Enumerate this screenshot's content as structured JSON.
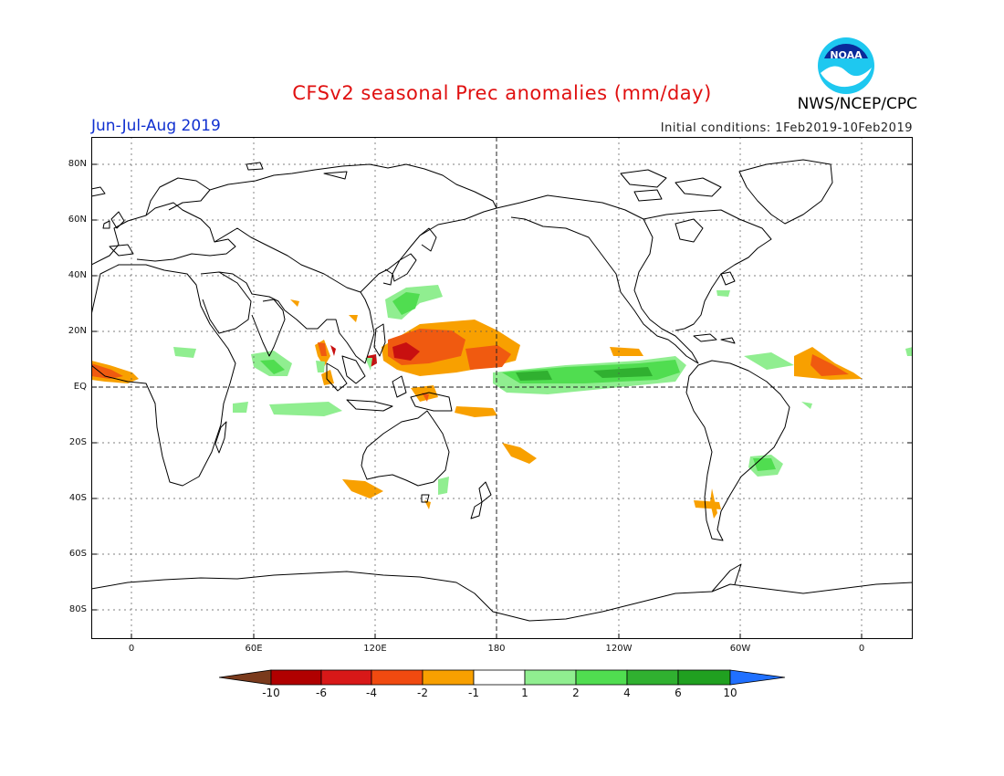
{
  "header": {
    "title": "CFSv2 seasonal Prec anomalies (mm/day)",
    "season": "Jun-Jul-Aug 2019",
    "initial_conditions": "Initial conditions: 1Feb2019-10Feb2019",
    "agency": "NWS/NCEP/CPC",
    "logo_text": "NOAA"
  },
  "map": {
    "lat_labels": [
      "80N",
      "60N",
      "40N",
      "20N",
      "EQ",
      "20S",
      "40S",
      "60S",
      "80S"
    ],
    "lon_labels": [
      "0",
      "60E",
      "120E",
      "180",
      "120W",
      "60W",
      "0"
    ]
  },
  "colorbar": {
    "labels": [
      "-10",
      "-6",
      "-4",
      "-2",
      "-1",
      "1",
      "2",
      "4",
      "6",
      "10"
    ],
    "colors": [
      "#7a3a1c",
      "#b00000",
      "#d81818",
      "#f04a10",
      "#f8a000",
      "#ffffff",
      "#90ee90",
      "#50dd50",
      "#30b030",
      "#20a020",
      "#2070ff"
    ]
  },
  "colors": {
    "title": "#e01010",
    "season": "#1030d0",
    "wet": "#50dd50",
    "dry_light": "#f8a000",
    "dry_mid": "#f05a10",
    "dry_strong": "#c81010"
  }
}
